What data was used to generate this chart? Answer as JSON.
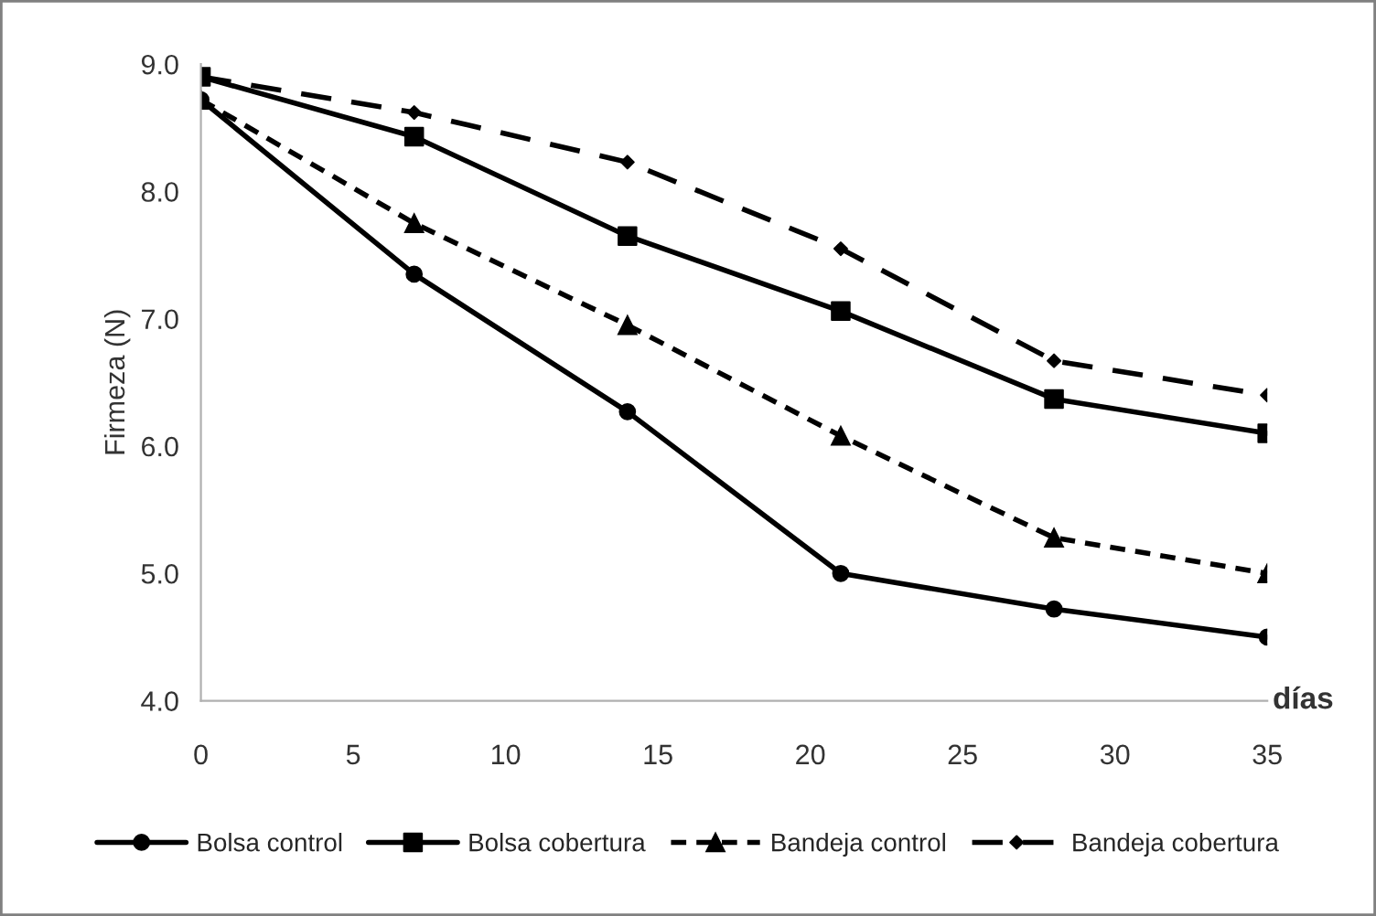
{
  "chart_data": {
    "type": "line",
    "xlabel": "días",
    "ylabel": "Firmeza (N)",
    "x": [
      0,
      7,
      14,
      21,
      28,
      35
    ],
    "series": [
      {
        "name": "Bolsa control",
        "color": "#000000",
        "marker": "circle",
        "line_style": "solid",
        "values": [
          8.72,
          7.35,
          6.27,
          5.0,
          4.72,
          4.5
        ]
      },
      {
        "name": "Bolsa cobertura",
        "color": "#000000",
        "marker": "square",
        "line_style": "solid",
        "values": [
          8.9,
          8.43,
          7.65,
          7.06,
          6.37,
          6.1
        ]
      },
      {
        "name": "Bandeja control",
        "color": "#000000",
        "marker": "triangle",
        "line_style": "dotted",
        "values": [
          8.72,
          7.75,
          6.95,
          6.08,
          5.28,
          5.0
        ]
      },
      {
        "name": "Bandeja cobertura",
        "color": "#000000",
        "marker": "diamond",
        "line_style": "dashed",
        "values": [
          8.9,
          8.62,
          8.23,
          7.55,
          6.67,
          6.4
        ]
      }
    ],
    "xlim": [
      0,
      35
    ],
    "xticks": [
      0,
      5,
      10,
      15,
      20,
      25,
      30,
      35
    ],
    "ylim": [
      4,
      9
    ],
    "yticks": [
      {
        "value": 4,
        "label": "4.0"
      },
      {
        "value": 5,
        "label": "5.0"
      },
      {
        "value": 6,
        "label": "6.0"
      },
      {
        "value": 7,
        "label": "7.0"
      },
      {
        "value": 8,
        "label": "8.0"
      },
      {
        "value": 9,
        "label": "9.0"
      }
    ],
    "grid": false,
    "legend": "bottom"
  }
}
